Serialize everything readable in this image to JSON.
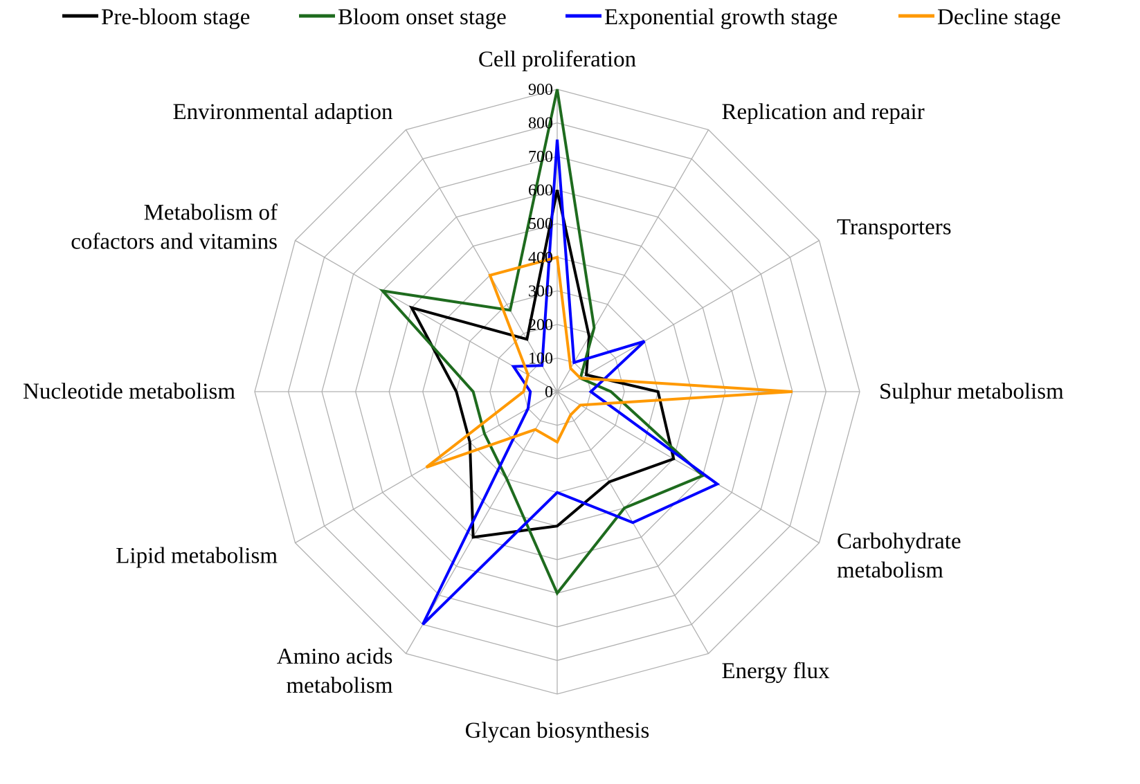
{
  "chart_data": {
    "type": "radar",
    "axes": [
      "Cell proliferation",
      "Replication and repair",
      "Transporters",
      "Sulphur metabolism",
      "Carbohydrate metabolism",
      "Energy flux",
      "Glycan biosynthesis",
      "Amino acids metabolism",
      "Lipid metabolism",
      "Nucleotide metabolism",
      "Metabolism of cofactors and vitamins",
      "Environmental adaption"
    ],
    "axis_label_lines": [
      [
        "Cell proliferation"
      ],
      [
        "Replication and repair"
      ],
      [
        "Transporters"
      ],
      [
        "Sulphur metabolism"
      ],
      [
        "Carbohydrate",
        "metabolism"
      ],
      [
        "Energy flux"
      ],
      [
        "Glycan biosynthesis"
      ],
      [
        "Amino acids",
        "metabolism"
      ],
      [
        "Lipid metabolism"
      ],
      [
        "Nucleotide metabolism"
      ],
      [
        "Metabolism of",
        "cofactors and vitamins"
      ],
      [
        "Environmental adaption"
      ]
    ],
    "ticks": [
      "0",
      "100",
      "200",
      "300",
      "400",
      "500",
      "600",
      "700",
      "800",
      "900"
    ],
    "rmax": 900,
    "legend_position": "top",
    "series": [
      {
        "name": "Pre-bloom stage",
        "color": "#000000",
        "values": [
          600,
          190,
          100,
          300,
          400,
          310,
          400,
          500,
          300,
          300,
          500,
          180
        ]
      },
      {
        "name": "Bloom onset stage",
        "color": "#1e6b1e",
        "values": [
          900,
          220,
          80,
          160,
          500,
          400,
          600,
          300,
          250,
          250,
          600,
          280
        ]
      },
      {
        "name": "Exponential growth stage",
        "color": "#0000ff",
        "values": [
          750,
          100,
          300,
          100,
          550,
          450,
          300,
          800,
          100,
          80,
          150,
          90
        ]
      },
      {
        "name": "Decline stage",
        "color": "#ff9900",
        "values": [
          400,
          80,
          80,
          700,
          80,
          80,
          150,
          130,
          450,
          100,
          100,
          400
        ]
      }
    ]
  }
}
